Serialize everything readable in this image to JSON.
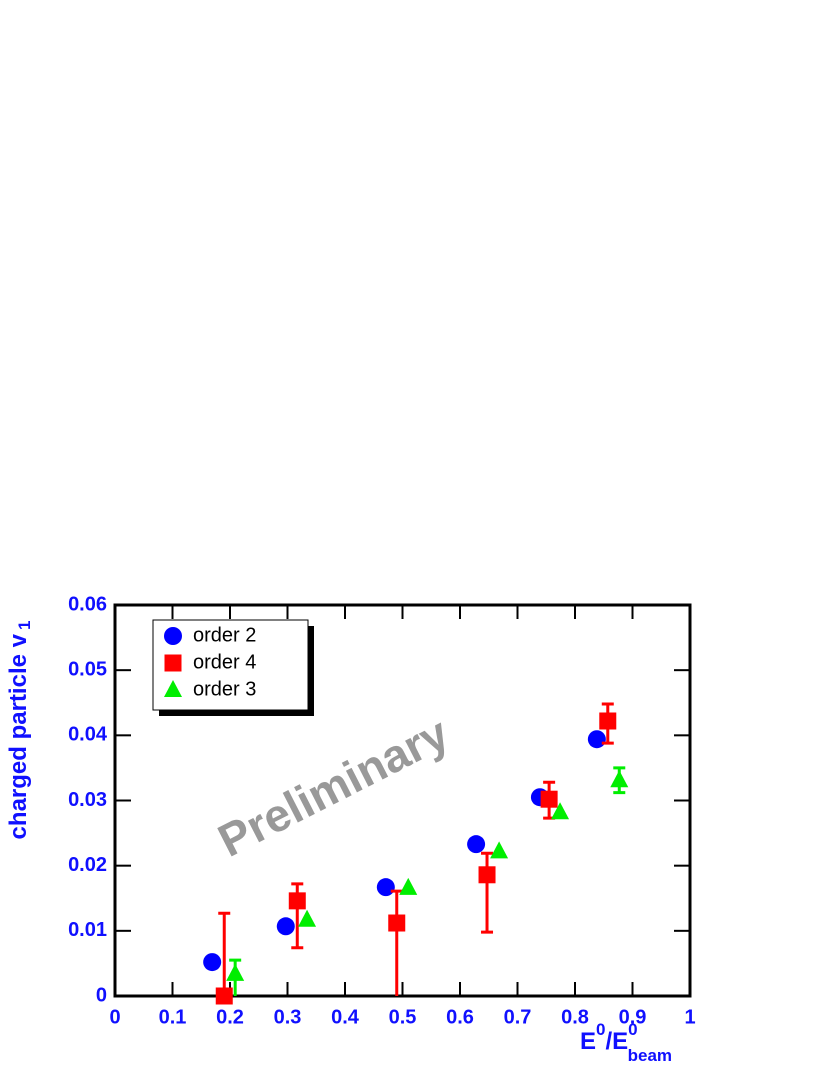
{
  "chart_data": {
    "type": "scatter",
    "y_label": {
      "text": "charged particle v",
      "sub": "1"
    },
    "x_label": {
      "base": "E",
      "sup": "0",
      "sep": "/E",
      "sup2": "0",
      "sub2": "beam"
    },
    "annotation": "Preliminary",
    "xlim": [
      0,
      1
    ],
    "ylim": [
      0,
      0.06
    ],
    "xticks": [
      0,
      0.1,
      0.2,
      0.3,
      0.4,
      0.5,
      0.6,
      0.7,
      0.8,
      0.9,
      1
    ],
    "yticks": [
      0,
      0.01,
      0.02,
      0.03,
      0.04,
      0.05,
      0.06
    ],
    "legend": "top-left",
    "series": [
      {
        "name": "order 2",
        "color": "#0000ff",
        "marker": "circle",
        "x": [
          0.169,
          0.297,
          0.471,
          0.628,
          0.739,
          0.838
        ],
        "values": [
          0.0052,
          0.0107,
          0.0167,
          0.0233,
          0.0305,
          0.0394
        ]
      },
      {
        "name": "order 4",
        "color": "#ff0000",
        "marker": "square",
        "x": [
          0.19,
          0.317,
          0.49,
          0.647,
          0.755,
          0.857
        ],
        "values": [
          0.0,
          0.0146,
          0.0112,
          0.0186,
          0.0302,
          0.0422
        ],
        "err_low": [
          0.0,
          0.0072,
          0.0112,
          0.0088,
          0.0029,
          0.0034
        ],
        "err_high": [
          0.0127,
          0.0026,
          0.0049,
          0.0033,
          0.0026,
          0.0026
        ]
      },
      {
        "name": "order 3",
        "color": "#00ee00",
        "marker": "triangle",
        "x": [
          0.209,
          0.334,
          0.51,
          0.668,
          0.774,
          0.877
        ],
        "values": [
          0.0034,
          0.0117,
          0.0166,
          0.0222,
          0.0282,
          0.0331
        ],
        "err_low": [
          0.0034,
          null,
          null,
          null,
          null,
          0.0019
        ],
        "err_high": [
          0.0021,
          null,
          null,
          null,
          null,
          0.0019
        ]
      }
    ]
  }
}
